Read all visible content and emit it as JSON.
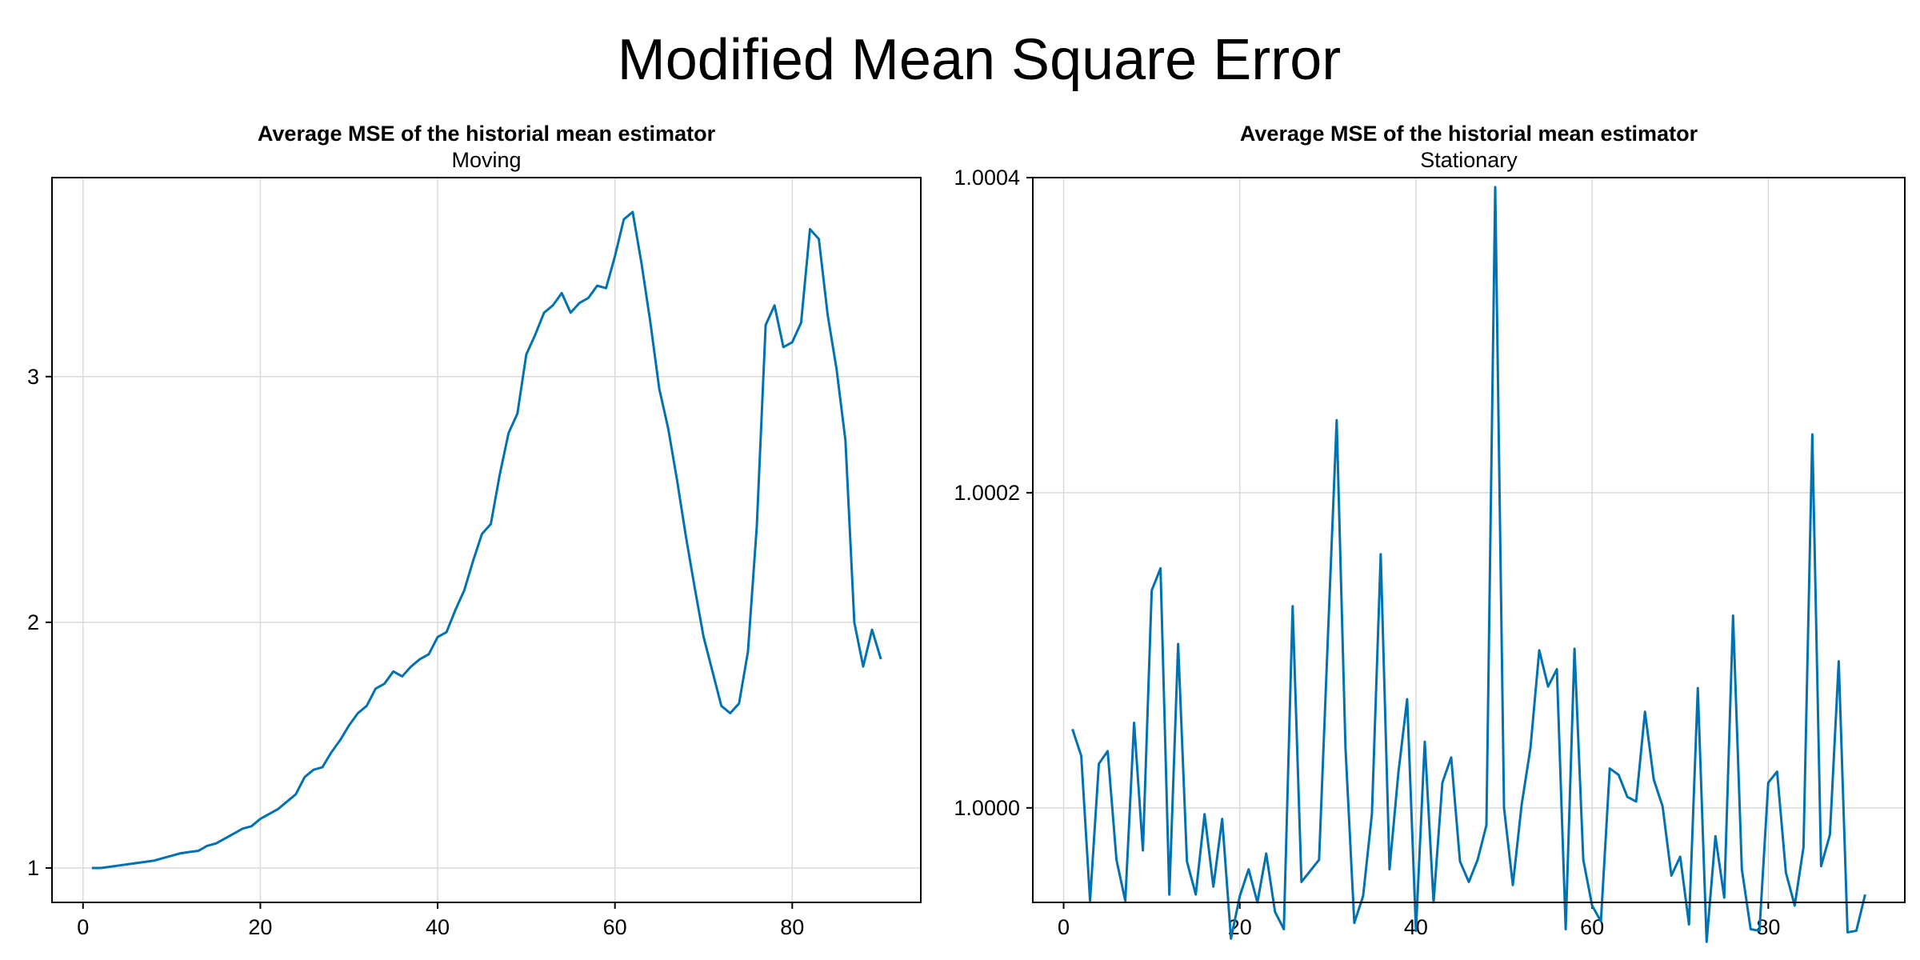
{
  "figure": {
    "title": "Modified Mean Square Error"
  },
  "colors": {
    "series": "#0072B2"
  },
  "chart_data": [
    {
      "type": "line",
      "title": "Average MSE of the historial mean estimator",
      "subtitle": "Moving",
      "xlabel": "",
      "ylabel": "",
      "xlim": [
        -3.5,
        94.5
      ],
      "ylim": [
        0.86,
        3.81
      ],
      "xticks": [
        0,
        20,
        40,
        60,
        80
      ],
      "yticks": [
        1,
        2,
        3
      ],
      "grid": true,
      "series": [
        {
          "x": [
            1,
            2,
            3,
            4,
            5,
            6,
            7,
            8,
            9,
            10,
            11,
            12,
            13,
            14,
            15,
            16,
            17,
            18,
            19,
            20,
            21,
            22,
            23,
            24,
            25,
            26,
            27,
            28,
            29,
            30,
            31,
            32,
            33,
            34,
            35,
            36,
            37,
            38,
            39,
            40,
            41,
            42,
            43,
            44,
            45,
            46,
            47,
            48,
            49,
            50,
            51,
            52,
            53,
            54,
            55,
            56,
            57,
            58,
            59,
            60,
            61,
            62,
            63,
            64,
            65,
            66,
            67,
            68,
            69,
            70,
            71,
            72,
            73,
            74,
            75,
            76,
            77,
            78,
            79,
            80,
            81,
            82,
            83,
            84,
            85,
            86,
            87,
            88,
            89,
            90
          ],
          "values": [
            1.0,
            1.0,
            1.005,
            1.01,
            1.015,
            1.02,
            1.025,
            1.03,
            1.04,
            1.05,
            1.06,
            1.065,
            1.07,
            1.09,
            1.1,
            1.12,
            1.14,
            1.16,
            1.17,
            1.2,
            1.22,
            1.24,
            1.27,
            1.3,
            1.37,
            1.4,
            1.41,
            1.47,
            1.52,
            1.58,
            1.63,
            1.66,
            1.73,
            1.75,
            1.8,
            1.78,
            1.82,
            1.85,
            1.87,
            1.94,
            1.96,
            2.05,
            2.13,
            2.25,
            2.36,
            2.4,
            2.6,
            2.77,
            2.85,
            3.09,
            3.17,
            3.26,
            3.29,
            3.34,
            3.26,
            3.3,
            3.32,
            3.37,
            3.36,
            3.49,
            3.64,
            3.67,
            3.46,
            3.22,
            2.95,
            2.79,
            2.58,
            2.35,
            2.14,
            1.94,
            1.8,
            1.66,
            1.63,
            1.67,
            1.88,
            2.39,
            3.21,
            3.29,
            3.12,
            3.14,
            3.22,
            3.6,
            3.56,
            3.25,
            3.03,
            2.74,
            2.0,
            1.82,
            1.97,
            1.85
          ]
        }
      ]
    },
    {
      "type": "line",
      "title": "Average MSE of the historial mean estimator",
      "subtitle": "Stationary",
      "xlabel": "",
      "ylabel": "",
      "xlim": [
        -3.5,
        95.5
      ],
      "ylim": [
        0.99994,
        1.0004
      ],
      "xticks": [
        0,
        20,
        40,
        60,
        80
      ],
      "yticks": [
        1.0,
        1.0002,
        1.0004
      ],
      "ytick_labels": [
        "1.0000",
        "1.0002",
        "1.0004"
      ],
      "grid": true,
      "series": [
        {
          "x": [
            1,
            2,
            3,
            4,
            5,
            6,
            7,
            8,
            9,
            10,
            11,
            12,
            13,
            14,
            15,
            16,
            17,
            18,
            19,
            20,
            21,
            22,
            23,
            24,
            25,
            26,
            27,
            28,
            29,
            30,
            31,
            32,
            33,
            34,
            35,
            36,
            37,
            38,
            39,
            40,
            41,
            42,
            43,
            44,
            45,
            46,
            47,
            48,
            49,
            50,
            51,
            52,
            53,
            54,
            55,
            56,
            57,
            58,
            59,
            60,
            61,
            62,
            63,
            64,
            65,
            66,
            67,
            68,
            69,
            70,
            71,
            72,
            73,
            74,
            75,
            76,
            77,
            78,
            79,
            80,
            81,
            82,
            83,
            84,
            85,
            86,
            87,
            88,
            89,
            90,
            91
          ],
          "values": [
            1.00005,
            1.000033,
            0.999941,
            1.000028,
            1.000036,
            0.999967,
            0.999941,
            1.000054,
            0.999973,
            1.000138,
            1.000152,
            0.999945,
            1.000104,
            0.999966,
            0.999945,
            0.999996,
            0.99995,
            0.999993,
            0.999917,
            0.999944,
            0.999961,
            0.99994,
            0.999971,
            0.999934,
            0.999923,
            1.000128,
            0.999953,
            0.99996,
            0.999967,
            1.000108,
            1.000246,
            1.000038,
            0.999927,
            0.999944,
            0.999996,
            1.000161,
            0.999961,
            1.000022,
            1.000069,
            0.999922,
            1.000042,
            0.99994,
            1.000016,
            1.000032,
            0.999966,
            0.999953,
            0.999967,
            0.999989,
            1.000394,
            1.0,
            0.999951,
            1.000002,
            1.000038,
            1.0001,
            1.000077,
            1.000088,
            0.999923,
            1.000101,
            0.999967,
            0.999938,
            0.999928,
            1.000025,
            1.000021,
            1.000007,
            1.000004,
            1.000061,
            1.000018,
            1.000001,
            0.999957,
            0.999969,
            0.999926,
            1.000076,
            0.999915,
            0.999982,
            0.999943,
            1.000122,
            0.999961,
            0.999923,
            0.999922,
            1.000016,
            1.000023,
            0.999959,
            0.999938,
            0.999975,
            1.000237,
            0.999963,
            0.999983,
            1.000093,
            0.999921,
            0.999922,
            0.999945
          ]
        }
      ]
    }
  ]
}
